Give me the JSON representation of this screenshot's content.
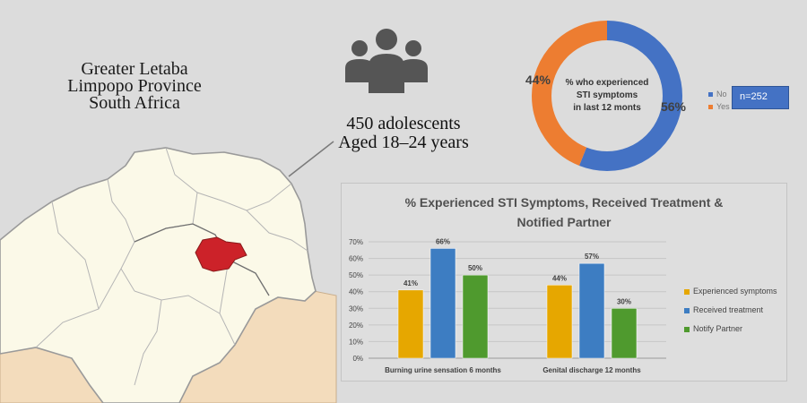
{
  "location": {
    "line1": "Greater Letaba",
    "line2": "Limpopo Province",
    "line3": "South Africa"
  },
  "cohort": {
    "line1": "450 adolescents",
    "line2": "Aged 18–24 years"
  },
  "icons": {
    "people": "people-group-icon",
    "map": "limpopo-map"
  },
  "colors": {
    "no": "#4472c4",
    "yes": "#ed7d31",
    "experienced": "#e6a700",
    "received": "#3d7dc2",
    "notify": "#4f9a2e",
    "highlight_region": "#cc2229"
  },
  "n_label": "n=252",
  "chart_data": [
    {
      "type": "pie",
      "subtype": "donut",
      "title_lines": [
        "% who experienced",
        "STI symptoms",
        "in last 12 monts"
      ],
      "categories": [
        "No",
        "Yes"
      ],
      "values": [
        56,
        44
      ],
      "value_labels": [
        "56%",
        "44%"
      ],
      "legend_position": "right"
    },
    {
      "type": "bar",
      "title_lines": [
        "% Experienced STI Symptoms, Received Treatment &",
        "Notified Partner"
      ],
      "categories": [
        "Burning urine sensation 6 months",
        "Genital discharge 12 months"
      ],
      "series": [
        {
          "name": "Experienced symptoms",
          "values": [
            41,
            44
          ]
        },
        {
          "name": "Received treatment",
          "values": [
            66,
            57
          ]
        },
        {
          "name": "Notify Partner",
          "values": [
            50,
            30
          ]
        }
      ],
      "value_labels": [
        [
          "41%",
          "44%"
        ],
        [
          "66%",
          "57%"
        ],
        [
          "50%",
          "30%"
        ]
      ],
      "ylim": [
        0,
        70
      ],
      "yticks": [
        "0%",
        "10%",
        "20%",
        "30%",
        "40%",
        "50%",
        "60%",
        "70%"
      ],
      "grid": true,
      "legend_position": "right"
    }
  ]
}
